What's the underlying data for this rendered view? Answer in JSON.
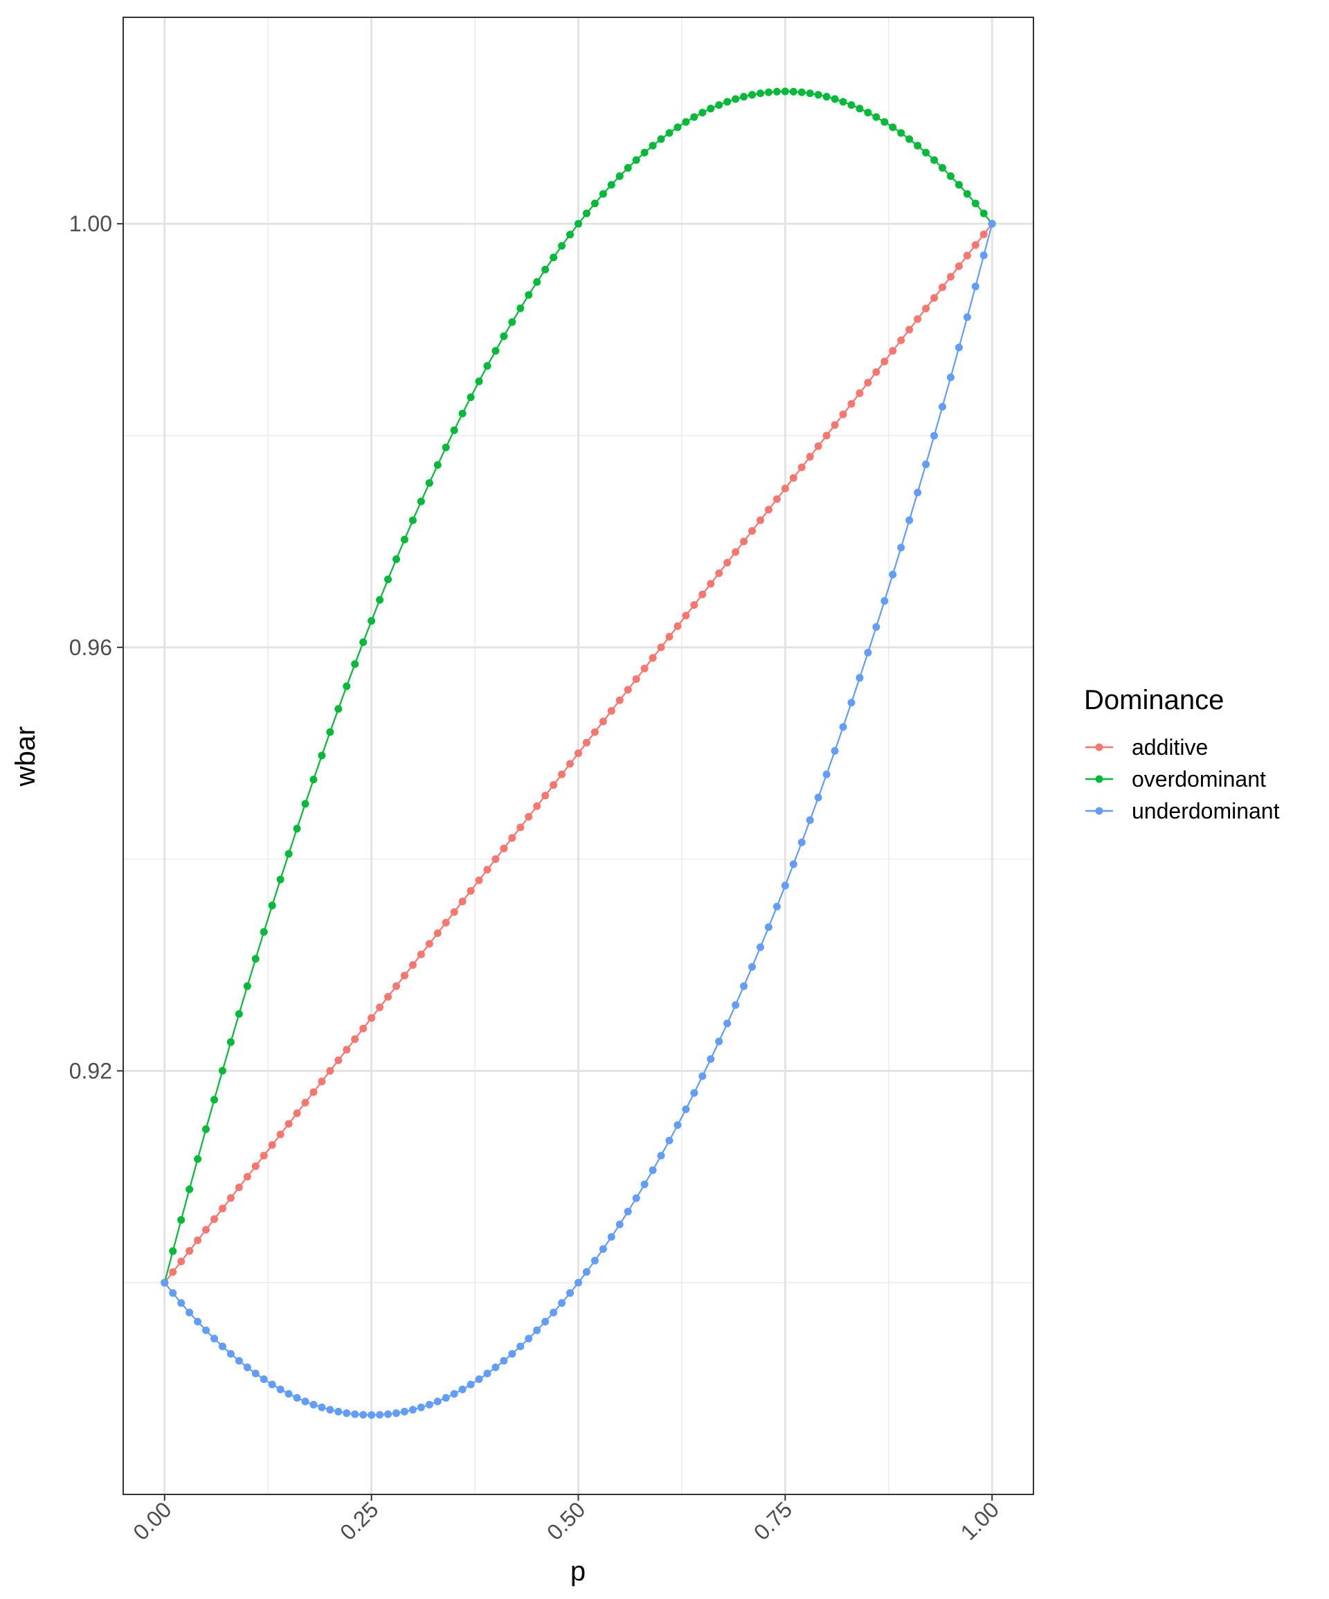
{
  "chart_data": {
    "type": "line",
    "title": "",
    "xlabel": "p",
    "ylabel": "wbar",
    "xlim": [
      -0.05,
      1.05
    ],
    "ylim": [
      0.88,
      1.0195
    ],
    "x_ticks": [
      0.0,
      0.25,
      0.5,
      0.75,
      1.0
    ],
    "x_tick_labels": [
      "0.00",
      "0.25",
      "0.50",
      "0.75",
      "1.00"
    ],
    "y_ticks": [
      0.92,
      0.96,
      1.0
    ],
    "y_tick_labels": [
      "0.92",
      "0.96",
      "1.00"
    ],
    "y_minor_ticks": [
      0.9,
      0.94,
      0.98
    ],
    "x_minor_ticks": [
      0.125,
      0.375,
      0.625,
      0.875
    ],
    "grid": true,
    "legend": {
      "title": "Dominance",
      "position": "right"
    },
    "x": {
      "from": 0,
      "to": 1,
      "step": 0.01
    },
    "series": [
      {
        "name": "additive",
        "color": "#F8766D",
        "wAA": 1.0,
        "wAa": 0.95,
        "waa": 0.9
      },
      {
        "name": "overdominant",
        "color": "#00BA38",
        "wAA": 1.0,
        "wAa": 1.05,
        "waa": 0.9
      },
      {
        "name": "underdominant",
        "color": "#619CFF",
        "wAA": 1.0,
        "wAa": 0.85,
        "waa": 0.9
      }
    ]
  }
}
